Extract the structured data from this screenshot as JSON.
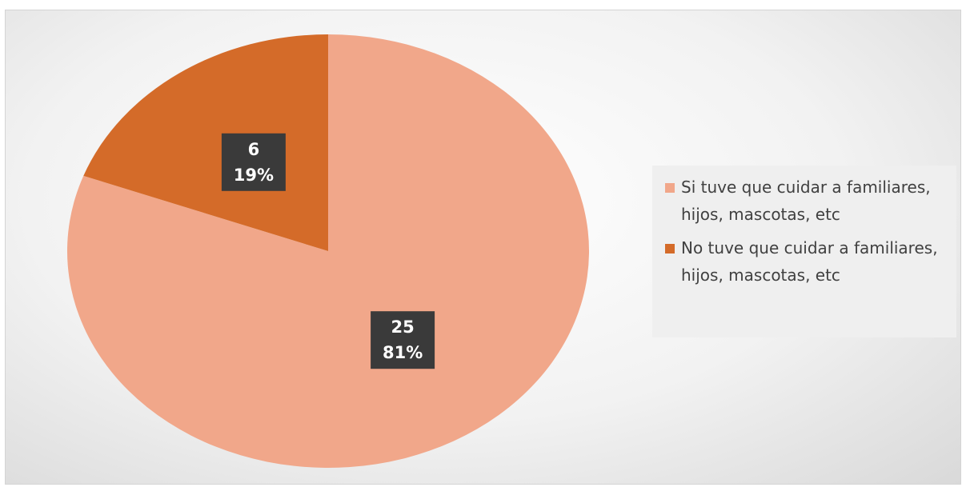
{
  "chart_data": {
    "type": "pie",
    "categories": [
      "Si tuve que cuidar a familiares, hijos, mascotas, etc",
      "No tuve que cuidar a familiares, hijos, mascotas, etc"
    ],
    "values": [
      25,
      6
    ],
    "percentages": [
      81,
      19
    ],
    "percentage_labels": [
      "81%",
      "19%"
    ],
    "colors": [
      "#f1a78a",
      "#d46b29"
    ],
    "legend": "right"
  }
}
